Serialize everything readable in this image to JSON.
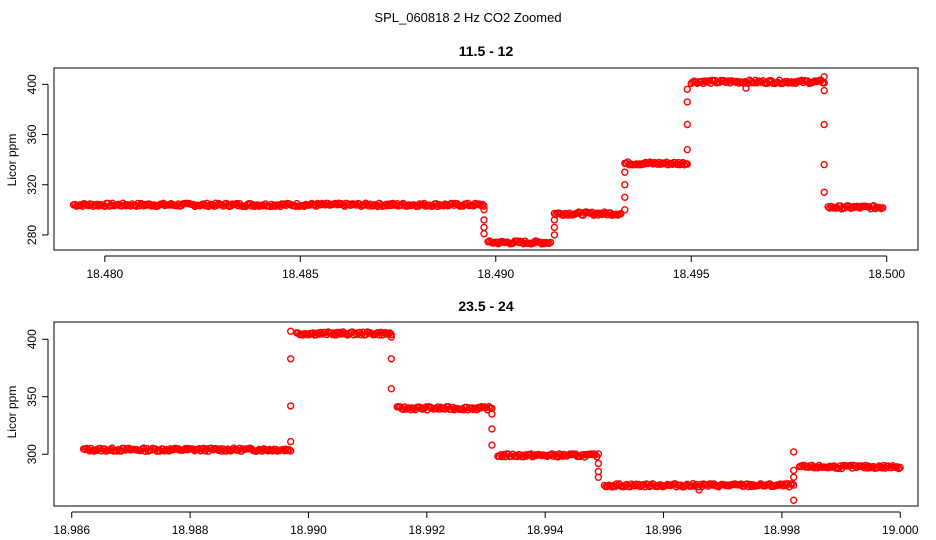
{
  "figure": {
    "title": "SPL_060818  2 Hz CO2 Zoomed"
  },
  "colors": {
    "points": "#ff0000",
    "axis": "#000000",
    "background": "#ffffff"
  },
  "chart_data": [
    {
      "type": "scatter",
      "title": "11.5 - 12",
      "xlabel": "",
      "ylabel": "Licor ppm",
      "xlim": [
        18.4787,
        18.5008
      ],
      "ylim": [
        268,
        413
      ],
      "xticks": [
        18.48,
        18.485,
        18.49,
        18.495,
        18.5
      ],
      "xtick_labels": [
        "18.480",
        "18.485",
        "18.490",
        "18.495",
        "18.500"
      ],
      "yticks": [
        280,
        320,
        360,
        400
      ],
      "ytick_labels": [
        "280",
        "320",
        "360",
        "400"
      ],
      "levels": [
        {
          "x_start": 18.4792,
          "x_end": 18.4897,
          "y": 304
        },
        {
          "x_start": 18.4898,
          "x_end": 18.4914,
          "y": 274
        },
        {
          "x_start": 18.4915,
          "x_end": 18.4932,
          "y": 297
        },
        {
          "x_start": 18.4933,
          "x_end": 18.4949,
          "y": 337
        },
        {
          "x_start": 18.495,
          "x_end": 18.4984,
          "y": 402
        },
        {
          "x_start": 18.4985,
          "x_end": 18.4999,
          "y": 302
        }
      ],
      "transitions": [
        {
          "x": 18.4897,
          "y": [
            300,
            292,
            286,
            281
          ]
        },
        {
          "x": 18.4915,
          "y": [
            280,
            286,
            292
          ]
        },
        {
          "x": 18.4933,
          "y": [
            300,
            310,
            320,
            330
          ]
        },
        {
          "x": 18.4949,
          "y": [
            348,
            368,
            386,
            396
          ]
        },
        {
          "x": 18.4984,
          "y": [
            395,
            368,
            336,
            314
          ]
        }
      ],
      "outliers": [
        {
          "x": 18.4964,
          "y": 397
        },
        {
          "x": 18.4984,
          "y": 406
        }
      ]
    },
    {
      "type": "scatter",
      "title": "23.5 - 24",
      "xlabel": "",
      "ylabel": "Licor ppm",
      "xlim": [
        18.9857,
        19.0003
      ],
      "ylim": [
        255,
        415
      ],
      "xticks": [
        18.986,
        18.988,
        18.99,
        18.992,
        18.994,
        18.996,
        18.998,
        19.0
      ],
      "xtick_labels": [
        "18.986",
        "18.988",
        "18.990",
        "18.992",
        "18.994",
        "18.996",
        "18.998",
        "19.000"
      ],
      "yticks": [
        300,
        350,
        400
      ],
      "ytick_labels": [
        "300",
        "350",
        "400"
      ],
      "levels": [
        {
          "x_start": 18.9862,
          "x_end": 18.9897,
          "y": 304
        },
        {
          "x_start": 18.9898,
          "x_end": 18.9914,
          "y": 405
        },
        {
          "x_start": 18.9915,
          "x_end": 18.9931,
          "y": 340
        },
        {
          "x_start": 18.9932,
          "x_end": 18.9949,
          "y": 299
        },
        {
          "x_start": 18.995,
          "x_end": 18.9982,
          "y": 273
        },
        {
          "x_start": 18.9983,
          "x_end": 19.0,
          "y": 289
        }
      ],
      "transitions": [
        {
          "x": 18.9897,
          "y": [
            311,
            342,
            383,
            407
          ]
        },
        {
          "x": 18.9914,
          "y": [
            402,
            383,
            357
          ]
        },
        {
          "x": 18.9931,
          "y": [
            335,
            322,
            308
          ]
        },
        {
          "x": 18.9949,
          "y": [
            292,
            285,
            280
          ]
        },
        {
          "x": 18.9982,
          "y": [
            280,
            286,
            302
          ]
        }
      ],
      "outliers": [
        {
          "x": 18.9966,
          "y": 269
        },
        {
          "x": 18.9982,
          "y": 260
        }
      ]
    }
  ]
}
